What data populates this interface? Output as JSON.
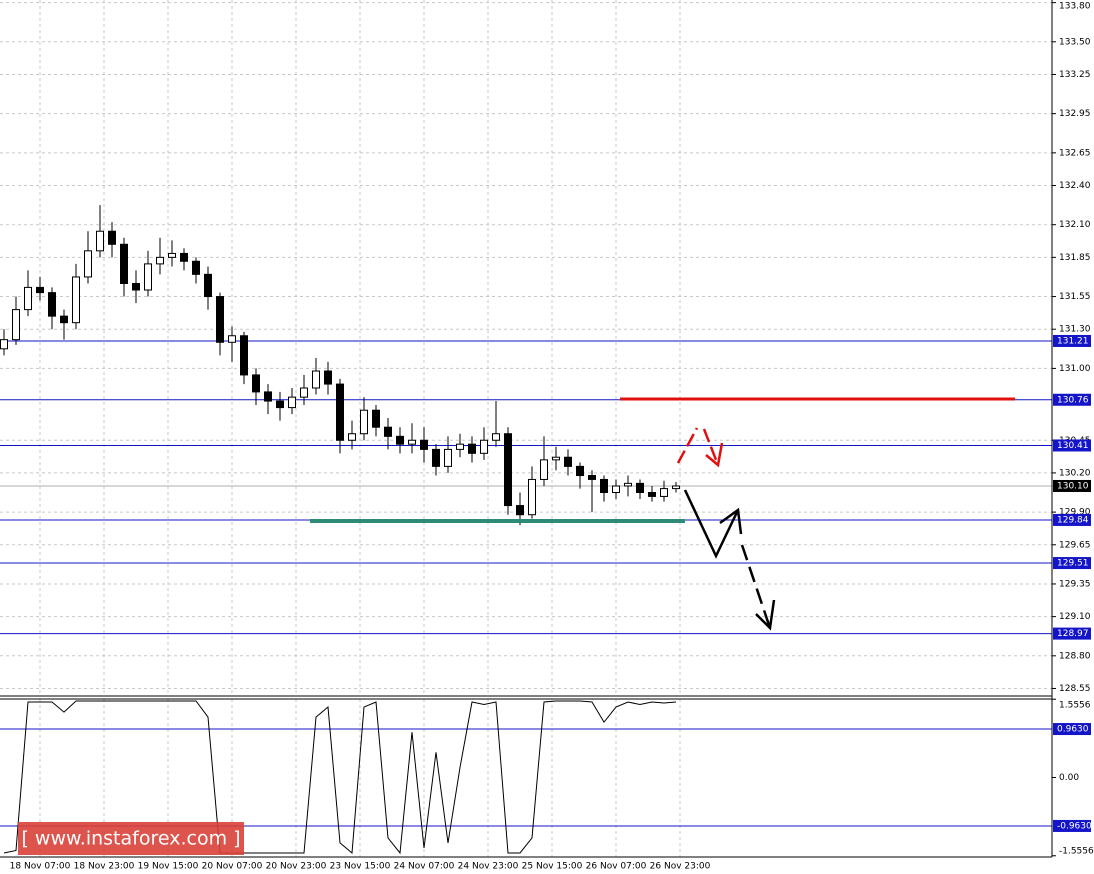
{
  "chart_data": [
    {
      "type": "candlestick",
      "x": [
        1,
        4,
        7,
        10,
        13,
        16,
        19,
        22,
        25,
        28,
        31,
        34,
        37,
        40,
        43,
        46,
        49,
        52,
        55,
        58,
        61,
        64,
        67,
        70,
        73,
        76,
        79,
        82,
        85,
        88,
        91,
        94,
        97,
        100,
        103,
        106,
        109,
        112,
        115,
        118,
        121,
        124,
        127,
        130,
        133,
        136,
        139,
        142,
        145,
        148,
        151,
        154,
        157,
        160,
        163,
        166,
        169
      ],
      "open": [
        131.15,
        131.22,
        131.45,
        131.62,
        131.58,
        131.4,
        131.35,
        131.7,
        131.9,
        132.05,
        131.95,
        131.65,
        131.6,
        131.8,
        131.85,
        131.88,
        131.82,
        131.72,
        131.55,
        131.2,
        131.25,
        130.95,
        130.82,
        130.75,
        130.7,
        130.78,
        130.85,
        130.98,
        130.88,
        130.45,
        130.5,
        130.68,
        130.55,
        130.48,
        130.42,
        130.45,
        130.38,
        130.25,
        130.38,
        130.42,
        130.35,
        130.45,
        130.5,
        129.95,
        129.88,
        130.15,
        130.3,
        130.32,
        130.25,
        130.18,
        130.15,
        130.05,
        130.1,
        130.12,
        130.05,
        130.02,
        130.08
      ],
      "high": [
        131.3,
        131.55,
        131.75,
        131.7,
        131.62,
        131.45,
        131.8,
        132.05,
        132.25,
        132.12,
        132.0,
        131.75,
        131.9,
        132.0,
        131.98,
        131.92,
        131.85,
        131.78,
        131.58,
        131.32,
        131.28,
        131.0,
        130.88,
        130.82,
        130.85,
        130.95,
        131.08,
        131.05,
        130.92,
        130.6,
        130.78,
        130.72,
        130.62,
        130.55,
        130.58,
        130.55,
        130.42,
        130.48,
        130.5,
        130.48,
        130.55,
        130.75,
        130.55,
        130.05,
        130.25,
        130.48,
        130.4,
        130.38,
        130.28,
        130.22,
        130.18,
        130.15,
        130.18,
        130.15,
        130.1,
        130.14,
        130.13
      ],
      "low": [
        131.1,
        131.18,
        131.4,
        131.52,
        131.3,
        131.22,
        131.3,
        131.65,
        131.85,
        131.85,
        131.55,
        131.5,
        131.55,
        131.72,
        131.78,
        131.75,
        131.65,
        131.45,
        131.1,
        131.05,
        130.88,
        130.72,
        130.65,
        130.6,
        130.65,
        130.72,
        130.8,
        130.8,
        130.35,
        130.38,
        130.45,
        130.48,
        130.38,
        130.35,
        130.35,
        130.28,
        130.18,
        130.2,
        130.32,
        130.28,
        130.3,
        130.4,
        129.88,
        129.8,
        129.85,
        130.1,
        130.22,
        130.18,
        130.08,
        129.9,
        129.98,
        130.0,
        130.02,
        130.0,
        129.98,
        129.98,
        130.05
      ],
      "close": [
        131.22,
        131.45,
        131.62,
        131.58,
        131.4,
        131.35,
        131.7,
        131.9,
        132.05,
        131.95,
        131.65,
        131.6,
        131.8,
        131.85,
        131.88,
        131.82,
        131.72,
        131.55,
        131.2,
        131.25,
        130.95,
        130.82,
        130.75,
        130.7,
        130.78,
        130.85,
        130.98,
        130.88,
        130.45,
        130.5,
        130.68,
        130.55,
        130.48,
        130.42,
        130.45,
        130.38,
        130.25,
        130.38,
        130.42,
        130.35,
        130.45,
        130.5,
        129.95,
        129.88,
        130.15,
        130.3,
        130.32,
        130.25,
        130.18,
        130.15,
        130.05,
        130.1,
        130.12,
        130.05,
        130.02,
        130.08,
        130.1
      ],
      "up_color": "#ffffff",
      "down_color": "#000000",
      "xlim": [
        0,
        263
      ],
      "ylim": [
        128.5,
        133.82
      ],
      "yticks": [
        {
          "value": 133.8,
          "label": "133.80"
        },
        {
          "value": 133.5,
          "label": "133.50"
        },
        133.25,
        132.95,
        132.65,
        {
          "value": 132.4,
          "label": "132.40"
        },
        {
          "value": 132.1,
          "label": "132.10"
        },
        131.85,
        131.55,
        {
          "value": 131.3,
          "label": "131.30"
        },
        {
          "value": 131,
          "label": "131.00"
        },
        130.45,
        {
          "value": 130.2,
          "label": "130.20"
        },
        {
          "value": 129.9,
          "label": "129.90"
        },
        129.65,
        129.35,
        {
          "value": 129.1,
          "label": "129.10"
        },
        {
          "value": 128.8,
          "label": "128.80"
        },
        128.55
      ],
      "grid": true,
      "levels": [
        131.21,
        130.76,
        130.41,
        129.84,
        129.51,
        128.97
      ],
      "level_color": "#1414c8",
      "last_price": {
        "value": 130.1,
        "label": "130.10"
      }
    },
    {
      "type": "line",
      "x": [
        1,
        4,
        7,
        10,
        13,
        16,
        19,
        22,
        25,
        28,
        31,
        34,
        37,
        40,
        43,
        46,
        49,
        52,
        55,
        58,
        61,
        64,
        67,
        70,
        73,
        76,
        79,
        82,
        85,
        88,
        91,
        94,
        97,
        100,
        103,
        106,
        109,
        112,
        115,
        118,
        121,
        124,
        127,
        130,
        133,
        136,
        139,
        142,
        145,
        148,
        151,
        154,
        157,
        160,
        163,
        166,
        169
      ],
      "values": [
        -1.5,
        -1.45,
        1.5,
        1.5,
        1.5,
        1.3,
        1.52,
        1.52,
        1.52,
        1.52,
        1.52,
        1.52,
        1.52,
        1.52,
        1.52,
        1.52,
        1.52,
        1.2,
        -1.5,
        -1.5,
        -1.5,
        -1.5,
        -1.5,
        -1.5,
        -1.5,
        -1.5,
        1.2,
        1.4,
        -1.3,
        -1.5,
        1.4,
        1.5,
        -1.2,
        -1.5,
        0.9,
        -1.4,
        0.5,
        -1.3,
        0.2,
        1.5,
        1.45,
        1.5,
        -1.5,
        -1.5,
        -1.2,
        1.5,
        1.52,
        1.52,
        1.52,
        1.5,
        1.1,
        1.4,
        1.5,
        1.45,
        1.5,
        1.48,
        1.5
      ],
      "color": "#000000",
      "xlim": [
        0,
        263
      ],
      "ylim": [
        -1.58,
        1.56
      ],
      "yticks": [
        1.5556,
        {
          "value": 0,
          "label": "0.00"
        },
        -1.5556
      ],
      "levels": [
        {
          "value": 0.963,
          "label": "0.9630"
        },
        {
          "value": -0.963,
          "label": "-0.9630"
        }
      ],
      "level_color": "#1414c8",
      "xticks": [
        {
          "value": 10,
          "label": "18 Nov 07:00"
        },
        {
          "value": 26,
          "label": "18 Nov 23:00"
        },
        {
          "value": 42,
          "label": "19 Nov 15:00"
        },
        {
          "value": 58,
          "label": "20 Nov 07:00"
        },
        {
          "value": 74,
          "label": "20 Nov 23:00"
        },
        {
          "value": 90,
          "label": "23 Nov 15:00"
        },
        {
          "value": 106,
          "label": "24 Nov 07:00"
        },
        {
          "value": 122,
          "label": "24 Nov 23:00"
        },
        {
          "value": 138,
          "label": "25 Nov 15:00"
        },
        {
          "value": 154,
          "label": "26 Nov 07:00"
        },
        {
          "value": 170,
          "label": "26 Nov 23:00"
        }
      ]
    }
  ],
  "watermark": "[ www.instaforex.com ]"
}
